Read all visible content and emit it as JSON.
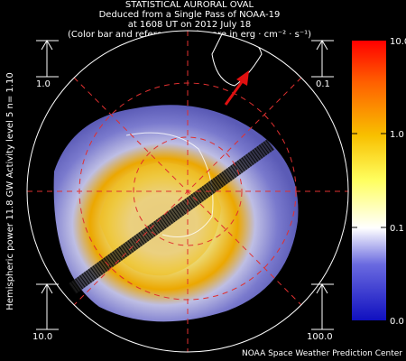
{
  "header": {
    "title": "STATISTICAL AURORAL OVAL",
    "line2": "Deduced from a Single Pass of NOAA-19",
    "line3": "at 1608 UT on 2012 July 18",
    "line4": "(Color bar and reference scales are in erg · cm⁻² · s⁻¹)"
  },
  "side_label": "Hemispheric power 11.8 GW   Activity level 5   n=  1.10",
  "reference_scales": {
    "top_left": "1.0",
    "top_right": "0.1",
    "bottom_left": "10.0",
    "bottom_right": "100.0"
  },
  "color_bar": {
    "labels": [
      "10.0",
      "1.0",
      "0.1",
      "0.0"
    ]
  },
  "footer": "NOAA Space Weather Prediction Center"
}
